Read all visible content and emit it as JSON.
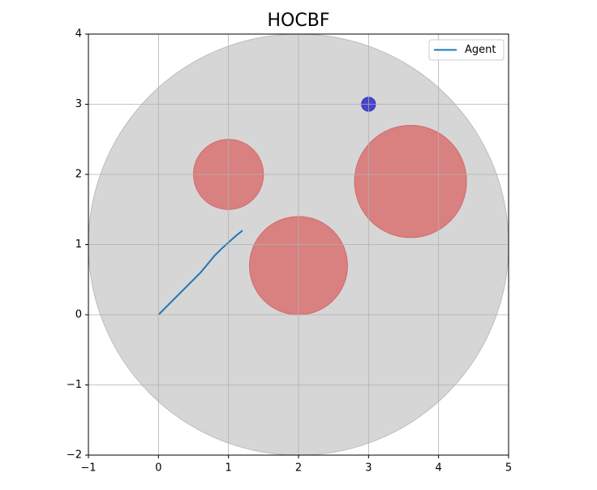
{
  "chart_data": {
    "type": "line",
    "title": "HOCBF",
    "x": [
      0,
      0.2,
      0.4,
      0.6,
      0.7,
      0.8,
      0.9,
      1.0,
      1.1,
      1.2
    ],
    "series": [
      {
        "name": "Agent",
        "color": "#1f77b4",
        "values": [
          0,
          0.2,
          0.4,
          0.6,
          0.72,
          0.84,
          0.94,
          1.03,
          1.12,
          1.2
        ]
      }
    ],
    "circles": [
      {
        "x": 2,
        "y": 1,
        "r": 3,
        "color": "#d6d6d6"
      },
      {
        "x": 1,
        "y": 2,
        "r": 0.5,
        "color": "#d98080"
      },
      {
        "x": 2,
        "y": 0.7,
        "r": 0.7,
        "color": "#d98080"
      },
      {
        "x": 3.6,
        "y": 1.9,
        "r": 0.8,
        "color": "#d98080"
      },
      {
        "x": 3,
        "y": 3,
        "r": 0.1,
        "color": "#4545cc"
      }
    ],
    "xlim": [
      -1,
      5
    ],
    "xticks": [
      {
        "value": -1,
        "label": "−1"
      },
      0,
      1,
      2,
      3,
      4,
      5
    ],
    "ylim": [
      -2,
      4
    ],
    "yticks": [
      {
        "value": -2,
        "label": "−2"
      },
      {
        "value": -1,
        "label": "−1"
      },
      0,
      1,
      2,
      3,
      4
    ],
    "grid": true,
    "legend": "upper right"
  }
}
